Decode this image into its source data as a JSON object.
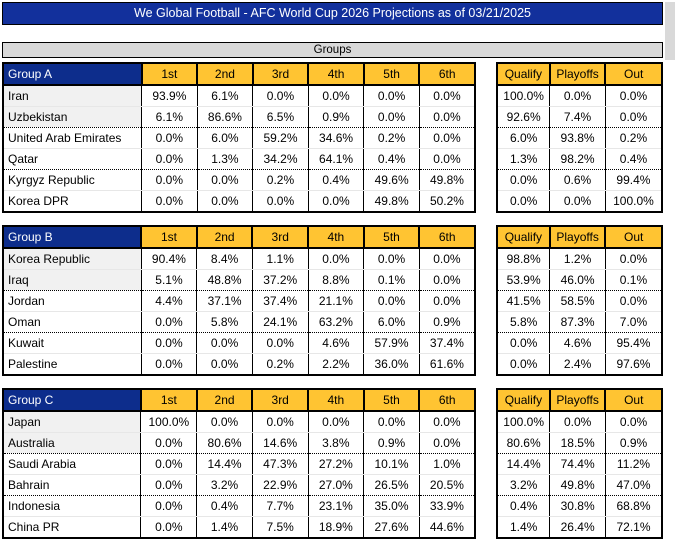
{
  "banner": {
    "title": "We Global Football - AFC World Cup 2026 Projections as of 03/21/2025"
  },
  "section_label": "Groups",
  "colors": {
    "banner_bg": "#12309c",
    "banner_text": "#ffffff",
    "group_header_bg": "#0d2d8c",
    "group_header_text": "#ffffff",
    "column_header_bg": "#ffc432",
    "section_bar_bg": "#d9d9d9",
    "border": "#000000"
  },
  "position_columns": [
    "1st",
    "2nd",
    "3rd",
    "4th",
    "5th",
    "6th"
  ],
  "result_columns": [
    "Qualify",
    "Playoffs",
    "Out"
  ],
  "groups": [
    {
      "name": "Group A",
      "teams": [
        {
          "team": "Iran",
          "positions": [
            "93.9%",
            "6.1%",
            "0.0%",
            "0.0%",
            "0.0%",
            "0.0%"
          ],
          "results": [
            "100.0%",
            "0.0%",
            "0.0%"
          ]
        },
        {
          "team": "Uzbekistan",
          "positions": [
            "6.1%",
            "86.6%",
            "6.5%",
            "0.9%",
            "0.0%",
            "0.0%"
          ],
          "results": [
            "92.6%",
            "7.4%",
            "0.0%"
          ]
        },
        {
          "team": "United Arab Emirates",
          "positions": [
            "0.0%",
            "6.0%",
            "59.2%",
            "34.6%",
            "0.2%",
            "0.0%"
          ],
          "results": [
            "6.0%",
            "93.8%",
            "0.2%"
          ]
        },
        {
          "team": "Qatar",
          "positions": [
            "0.0%",
            "1.3%",
            "34.2%",
            "64.1%",
            "0.4%",
            "0.0%"
          ],
          "results": [
            "1.3%",
            "98.2%",
            "0.4%"
          ]
        },
        {
          "team": "Kyrgyz Republic",
          "positions": [
            "0.0%",
            "0.0%",
            "0.2%",
            "0.4%",
            "49.6%",
            "49.8%"
          ],
          "results": [
            "0.0%",
            "0.6%",
            "99.4%"
          ]
        },
        {
          "team": "Korea DPR",
          "positions": [
            "0.0%",
            "0.0%",
            "0.0%",
            "0.0%",
            "49.8%",
            "50.2%"
          ],
          "results": [
            "0.0%",
            "0.0%",
            "100.0%"
          ]
        }
      ]
    },
    {
      "name": "Group B",
      "teams": [
        {
          "team": "Korea Republic",
          "positions": [
            "90.4%",
            "8.4%",
            "1.1%",
            "0.0%",
            "0.0%",
            "0.0%"
          ],
          "results": [
            "98.8%",
            "1.2%",
            "0.0%"
          ]
        },
        {
          "team": "Iraq",
          "positions": [
            "5.1%",
            "48.8%",
            "37.2%",
            "8.8%",
            "0.1%",
            "0.0%"
          ],
          "results": [
            "53.9%",
            "46.0%",
            "0.1%"
          ]
        },
        {
          "team": "Jordan",
          "positions": [
            "4.4%",
            "37.1%",
            "37.4%",
            "21.1%",
            "0.0%",
            "0.0%"
          ],
          "results": [
            "41.5%",
            "58.5%",
            "0.0%"
          ]
        },
        {
          "team": "Oman",
          "positions": [
            "0.0%",
            "5.8%",
            "24.1%",
            "63.2%",
            "6.0%",
            "0.9%"
          ],
          "results": [
            "5.8%",
            "87.3%",
            "7.0%"
          ]
        },
        {
          "team": "Kuwait",
          "positions": [
            "0.0%",
            "0.0%",
            "0.0%",
            "4.6%",
            "57.9%",
            "37.4%"
          ],
          "results": [
            "0.0%",
            "4.6%",
            "95.4%"
          ]
        },
        {
          "team": "Palestine",
          "positions": [
            "0.0%",
            "0.0%",
            "0.2%",
            "2.2%",
            "36.0%",
            "61.6%"
          ],
          "results": [
            "0.0%",
            "2.4%",
            "97.6%"
          ]
        }
      ]
    },
    {
      "name": "Group C",
      "teams": [
        {
          "team": "Japan",
          "positions": [
            "100.0%",
            "0.0%",
            "0.0%",
            "0.0%",
            "0.0%",
            "0.0%"
          ],
          "results": [
            "100.0%",
            "0.0%",
            "0.0%"
          ]
        },
        {
          "team": "Australia",
          "positions": [
            "0.0%",
            "80.6%",
            "14.6%",
            "3.8%",
            "0.9%",
            "0.0%"
          ],
          "results": [
            "80.6%",
            "18.5%",
            "0.9%"
          ]
        },
        {
          "team": "Saudi Arabia",
          "positions": [
            "0.0%",
            "14.4%",
            "47.3%",
            "27.2%",
            "10.1%",
            "1.0%"
          ],
          "results": [
            "14.4%",
            "74.4%",
            "11.2%"
          ]
        },
        {
          "team": "Bahrain",
          "positions": [
            "0.0%",
            "3.2%",
            "22.9%",
            "27.0%",
            "26.5%",
            "20.5%"
          ],
          "results": [
            "3.2%",
            "49.8%",
            "47.0%"
          ]
        },
        {
          "team": "Indonesia",
          "positions": [
            "0.0%",
            "0.4%",
            "7.7%",
            "23.1%",
            "35.0%",
            "33.9%"
          ],
          "results": [
            "0.4%",
            "30.8%",
            "68.8%"
          ]
        },
        {
          "team": "China PR",
          "positions": [
            "0.0%",
            "1.4%",
            "7.5%",
            "18.9%",
            "27.6%",
            "44.6%"
          ],
          "results": [
            "1.4%",
            "26.4%",
            "72.1%"
          ]
        }
      ]
    }
  ]
}
